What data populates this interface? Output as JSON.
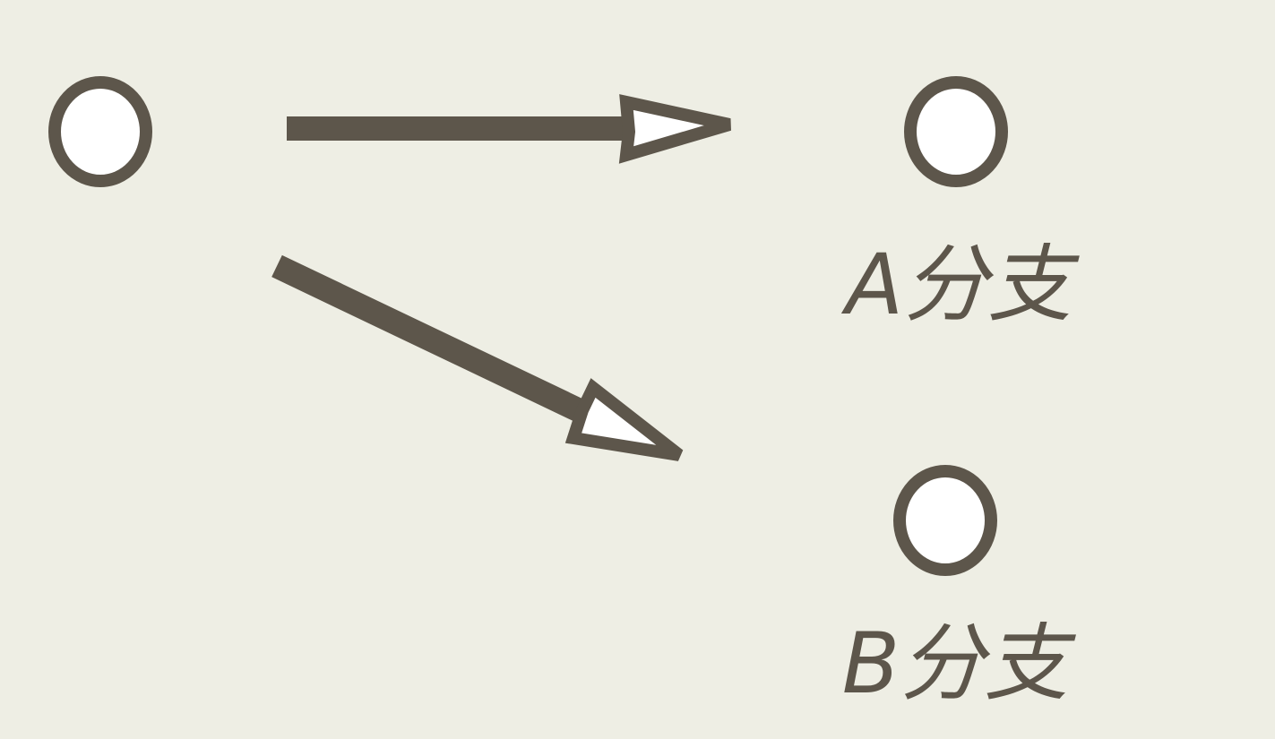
{
  "diagram": {
    "nodes": [
      {
        "id": "source",
        "label": ""
      },
      {
        "id": "branch-a",
        "label": "A分支"
      },
      {
        "id": "branch-b",
        "label": "B分支"
      }
    ],
    "edges": [
      {
        "from": "source",
        "to": "branch-a"
      },
      {
        "from": "source",
        "to": "branch-b"
      }
    ],
    "colors": {
      "background": "#eeeee4",
      "stroke": "#5d564b",
      "node_fill": "#ffffff"
    }
  }
}
